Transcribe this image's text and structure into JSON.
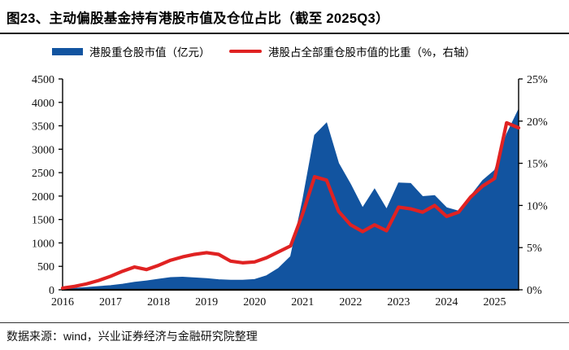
{
  "header": {
    "title": "图23、主动偏股基金持有港股市值及仓位占比（截至 2025Q3）"
  },
  "legend": {
    "items": [
      {
        "label": "港股重仓股市值（亿元）",
        "color": "#1254a0",
        "type": "area"
      },
      {
        "label": "港股占全部重仓股市值的比重（%，右轴）",
        "color": "#e02222",
        "type": "line"
      }
    ]
  },
  "footer": {
    "source": "数据来源：wind，兴业证券经济与金融研究院整理"
  },
  "chart_data": {
    "type": "area",
    "title": "主动偏股基金持有港股市值及仓位占比",
    "categories": [
      "2016Q1",
      "2016Q2",
      "2016Q3",
      "2016Q4",
      "2017Q1",
      "2017Q2",
      "2017Q3",
      "2017Q4",
      "2018Q1",
      "2018Q2",
      "2018Q3",
      "2018Q4",
      "2019Q1",
      "2019Q2",
      "2019Q3",
      "2019Q4",
      "2020Q1",
      "2020Q2",
      "2020Q3",
      "2020Q4",
      "2021Q1",
      "2021Q2",
      "2021Q3",
      "2021Q4",
      "2022Q1",
      "2022Q2",
      "2022Q3",
      "2022Q4",
      "2023Q1",
      "2023Q2",
      "2023Q3",
      "2023Q4",
      "2024Q1",
      "2024Q2",
      "2024Q3",
      "2024Q4",
      "2025Q1",
      "2025Q2",
      "2025Q3"
    ],
    "series": [
      {
        "name": "港股重仓股市值（亿元）",
        "type": "area",
        "axis": "left",
        "color": "#1254a0",
        "values": [
          15,
          30,
          50,
          70,
          90,
          120,
          160,
          190,
          225,
          260,
          270,
          255,
          240,
          215,
          205,
          205,
          220,
          300,
          460,
          710,
          1900,
          3300,
          3560,
          2700,
          2250,
          1750,
          2150,
          1720,
          2280,
          2270,
          1990,
          2010,
          1750,
          1680,
          2000,
          2330,
          2550,
          3320,
          3850
        ]
      },
      {
        "name": "港股占全部重仓股市值的比重（%，右轴）",
        "type": "line",
        "axis": "right",
        "color": "#e02222",
        "values": [
          0.2,
          0.4,
          0.7,
          1.1,
          1.6,
          2.2,
          2.7,
          2.4,
          2.9,
          3.5,
          3.9,
          4.2,
          4.4,
          4.2,
          3.4,
          3.2,
          3.3,
          3.8,
          4.5,
          5.2,
          9.0,
          13.4,
          13.0,
          9.3,
          7.7,
          6.9,
          7.7,
          7.0,
          9.8,
          9.6,
          9.2,
          10.0,
          8.7,
          9.2,
          11.0,
          12.3,
          13.2,
          19.8,
          19.2
        ]
      }
    ],
    "x_tick_labels": [
      "2016",
      "2017",
      "2018",
      "2019",
      "2020",
      "2021",
      "2022",
      "2023",
      "2024",
      "2025"
    ],
    "left_axis": {
      "min": 0,
      "max": 4500,
      "ticks": [
        0,
        500,
        1000,
        1500,
        2000,
        2500,
        3000,
        3500,
        4000,
        4500
      ],
      "suffix": ""
    },
    "right_axis": {
      "min": 0,
      "max": 25,
      "ticks": [
        0,
        5,
        10,
        15,
        20,
        25
      ],
      "suffix": "%"
    },
    "grid": false,
    "legend_position": "top"
  }
}
